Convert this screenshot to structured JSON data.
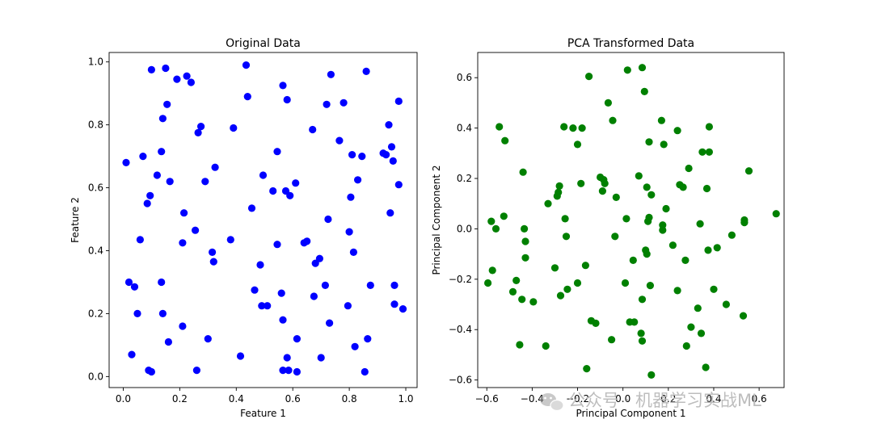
{
  "chart_data": [
    {
      "type": "scatter",
      "title": "Original Data",
      "xlabel": "Feature 1",
      "ylabel": "Feature 2",
      "xlim": [
        -0.05,
        1.04
      ],
      "ylim": [
        -0.035,
        1.03
      ],
      "xticks": [
        "0.0",
        "0.2",
        "0.4",
        "0.6",
        "0.8",
        "1.0"
      ],
      "yticks": [
        "0.0",
        "0.2",
        "0.4",
        "0.6",
        "0.8",
        "1.0"
      ],
      "grid": false,
      "color": "#0000ff",
      "points": [
        [
          0.01,
          0.68
        ],
        [
          0.02,
          0.3
        ],
        [
          0.03,
          0.07
        ],
        [
          0.04,
          0.285
        ],
        [
          0.05,
          0.2
        ],
        [
          0.06,
          0.435
        ],
        [
          0.07,
          0.7
        ],
        [
          0.085,
          0.55
        ],
        [
          0.09,
          0.02
        ],
        [
          0.095,
          0.575
        ],
        [
          0.1,
          0.015
        ],
        [
          0.1,
          0.975
        ],
        [
          0.12,
          0.64
        ],
        [
          0.135,
          0.715
        ],
        [
          0.135,
          0.3
        ],
        [
          0.14,
          0.82
        ],
        [
          0.14,
          0.2
        ],
        [
          0.15,
          0.98
        ],
        [
          0.155,
          0.865
        ],
        [
          0.16,
          0.11
        ],
        [
          0.165,
          0.62
        ],
        [
          0.19,
          0.945
        ],
        [
          0.21,
          0.425
        ],
        [
          0.21,
          0.16
        ],
        [
          0.215,
          0.52
        ],
        [
          0.225,
          0.955
        ],
        [
          0.24,
          0.935
        ],
        [
          0.255,
          0.465
        ],
        [
          0.26,
          0.02
        ],
        [
          0.265,
          0.775
        ],
        [
          0.275,
          0.795
        ],
        [
          0.29,
          0.62
        ],
        [
          0.3,
          0.12
        ],
        [
          0.315,
          0.395
        ],
        [
          0.32,
          0.365
        ],
        [
          0.325,
          0.665
        ],
        [
          0.38,
          0.435
        ],
        [
          0.39,
          0.79
        ],
        [
          0.415,
          0.065
        ],
        [
          0.435,
          0.99
        ],
        [
          0.44,
          0.89
        ],
        [
          0.455,
          0.535
        ],
        [
          0.465,
          0.275
        ],
        [
          0.485,
          0.355
        ],
        [
          0.49,
          0.225
        ],
        [
          0.495,
          0.64
        ],
        [
          0.51,
          0.225
        ],
        [
          0.53,
          0.59
        ],
        [
          0.545,
          0.715
        ],
        [
          0.545,
          0.42
        ],
        [
          0.56,
          0.265
        ],
        [
          0.565,
          0.925
        ],
        [
          0.565,
          0.18
        ],
        [
          0.565,
          0.02
        ],
        [
          0.575,
          0.59
        ],
        [
          0.58,
          0.88
        ],
        [
          0.58,
          0.06
        ],
        [
          0.585,
          0.02
        ],
        [
          0.59,
          0.575
        ],
        [
          0.61,
          0.615
        ],
        [
          0.615,
          0.12
        ],
        [
          0.615,
          0.015
        ],
        [
          0.64,
          0.425
        ],
        [
          0.65,
          0.43
        ],
        [
          0.67,
          0.785
        ],
        [
          0.675,
          0.255
        ],
        [
          0.68,
          0.36
        ],
        [
          0.695,
          0.375
        ],
        [
          0.7,
          0.06
        ],
        [
          0.715,
          0.29
        ],
        [
          0.72,
          0.865
        ],
        [
          0.725,
          0.5
        ],
        [
          0.73,
          0.17
        ],
        [
          0.735,
          0.96
        ],
        [
          0.765,
          0.75
        ],
        [
          0.78,
          0.87
        ],
        [
          0.795,
          0.225
        ],
        [
          0.8,
          0.46
        ],
        [
          0.805,
          0.57
        ],
        [
          0.81,
          0.705
        ],
        [
          0.815,
          0.395
        ],
        [
          0.82,
          0.095
        ],
        [
          0.83,
          0.625
        ],
        [
          0.845,
          0.7
        ],
        [
          0.855,
          0.015
        ],
        [
          0.86,
          0.97
        ],
        [
          0.865,
          0.12
        ],
        [
          0.875,
          0.29
        ],
        [
          0.92,
          0.71
        ],
        [
          0.93,
          0.705
        ],
        [
          0.94,
          0.8
        ],
        [
          0.945,
          0.52
        ],
        [
          0.95,
          0.73
        ],
        [
          0.955,
          0.685
        ],
        [
          0.96,
          0.29
        ],
        [
          0.96,
          0.23
        ],
        [
          0.975,
          0.61
        ],
        [
          0.975,
          0.875
        ],
        [
          0.99,
          0.215
        ]
      ]
    },
    {
      "type": "scatter",
      "title": "PCA Transformed Data",
      "xlabel": "Principal Component 1",
      "ylabel": "Principal Component 2",
      "xlim": [
        -0.64,
        0.71
      ],
      "ylim": [
        -0.63,
        0.7
      ],
      "xticks": [
        "−0.6",
        "−0.4",
        "−0.2",
        "0.0",
        "0.2",
        "0.4",
        "0.6"
      ],
      "yticks": [
        "−0.6",
        "−0.4",
        "−0.2",
        "0.0",
        "0.2",
        "0.4",
        "0.6"
      ],
      "grid": false,
      "color": "#008000",
      "points": [
        [
          -0.595,
          -0.215
        ],
        [
          -0.58,
          0.03
        ],
        [
          -0.575,
          -0.165
        ],
        [
          -0.56,
          0.0
        ],
        [
          -0.545,
          0.405
        ],
        [
          -0.525,
          0.05
        ],
        [
          -0.52,
          0.35
        ],
        [
          -0.485,
          -0.25
        ],
        [
          -0.47,
          -0.205
        ],
        [
          -0.455,
          -0.46
        ],
        [
          -0.445,
          -0.28
        ],
        [
          -0.44,
          0.225
        ],
        [
          -0.435,
          0.0
        ],
        [
          -0.43,
          -0.05
        ],
        [
          -0.43,
          -0.115
        ],
        [
          -0.395,
          -0.29
        ],
        [
          -0.34,
          -0.465
        ],
        [
          -0.33,
          0.1
        ],
        [
          -0.3,
          -0.155
        ],
        [
          -0.29,
          0.13
        ],
        [
          -0.285,
          0.145
        ],
        [
          -0.28,
          0.17
        ],
        [
          -0.275,
          -0.265
        ],
        [
          -0.26,
          0.405
        ],
        [
          -0.255,
          0.04
        ],
        [
          -0.25,
          -0.03
        ],
        [
          -0.245,
          -0.24
        ],
        [
          -0.22,
          0.4
        ],
        [
          -0.2,
          0.335
        ],
        [
          -0.2,
          -0.215
        ],
        [
          -0.185,
          0.18
        ],
        [
          -0.18,
          0.4
        ],
        [
          -0.165,
          -0.145
        ],
        [
          -0.16,
          -0.555
        ],
        [
          -0.15,
          0.605
        ],
        [
          -0.14,
          -0.365
        ],
        [
          -0.12,
          -0.375
        ],
        [
          -0.1,
          0.205
        ],
        [
          -0.09,
          0.15
        ],
        [
          -0.085,
          0.195
        ],
        [
          -0.08,
          0.18
        ],
        [
          -0.065,
          0.5
        ],
        [
          -0.05,
          -0.44
        ],
        [
          -0.045,
          0.43
        ],
        [
          -0.035,
          -0.03
        ],
        [
          -0.03,
          0.125
        ],
        [
          0.01,
          -0.215
        ],
        [
          0.015,
          0.04
        ],
        [
          0.02,
          0.63
        ],
        [
          0.03,
          -0.37
        ],
        [
          0.045,
          -0.125
        ],
        [
          0.05,
          -0.37
        ],
        [
          0.07,
          0.21
        ],
        [
          0.08,
          -0.415
        ],
        [
          0.085,
          0.64
        ],
        [
          0.085,
          -0.445
        ],
        [
          0.085,
          -0.28
        ],
        [
          0.095,
          0.545
        ],
        [
          0.1,
          -0.085
        ],
        [
          0.105,
          -0.1
        ],
        [
          0.105,
          0.165
        ],
        [
          0.11,
          0.03
        ],
        [
          0.115,
          0.045
        ],
        [
          0.115,
          0.345
        ],
        [
          0.12,
          -0.225
        ],
        [
          0.125,
          -0.58
        ],
        [
          0.125,
          0.135
        ],
        [
          0.17,
          0.43
        ],
        [
          0.175,
          0.015
        ],
        [
          0.175,
          -0.005
        ],
        [
          0.18,
          0.335
        ],
        [
          0.19,
          0.08
        ],
        [
          0.22,
          -0.065
        ],
        [
          0.24,
          0.39
        ],
        [
          0.24,
          -0.245
        ],
        [
          0.25,
          0.175
        ],
        [
          0.265,
          0.165
        ],
        [
          0.275,
          -0.125
        ],
        [
          0.28,
          -0.465
        ],
        [
          0.29,
          0.24
        ],
        [
          0.3,
          -0.39
        ],
        [
          0.33,
          -0.315
        ],
        [
          0.34,
          0.02
        ],
        [
          0.345,
          -0.415
        ],
        [
          0.35,
          0.305
        ],
        [
          0.365,
          -0.55
        ],
        [
          0.37,
          0.16
        ],
        [
          0.375,
          -0.085
        ],
        [
          0.38,
          0.305
        ],
        [
          0.38,
          0.405
        ],
        [
          0.4,
          -0.24
        ],
        [
          0.415,
          -0.075
        ],
        [
          0.455,
          -0.3
        ],
        [
          0.48,
          -0.025
        ],
        [
          0.53,
          -0.345
        ],
        [
          0.535,
          0.035
        ],
        [
          0.535,
          0.025
        ],
        [
          0.555,
          0.23
        ],
        [
          0.675,
          0.06
        ]
      ]
    }
  ],
  "watermark": {
    "text": "公众号 · 机器学习实战ML",
    "icon": "wechat-icon"
  }
}
